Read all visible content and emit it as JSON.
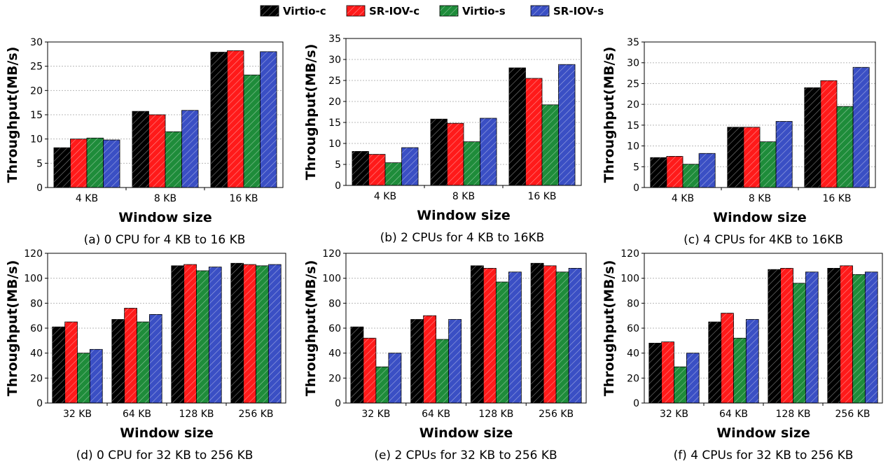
{
  "legend": [
    {
      "name": "Virtio-c",
      "color": "#000000"
    },
    {
      "name": "SR-IOV-c",
      "color": "#ff1a1a"
    },
    {
      "name": "Virtio-s",
      "color": "#1e8c3a"
    },
    {
      "name": "SR-IOV-s",
      "color": "#3a4fc4"
    }
  ],
  "chart_data": [
    {
      "type": "bar",
      "caption": "(a) 0 CPU for 4 KB to 16 KB",
      "xlabel": "Window size",
      "ylabel": "Throughput(MB/s)",
      "ylim": [
        0,
        30
      ],
      "yticks": [
        0,
        5,
        10,
        15,
        20,
        25,
        30
      ],
      "grid": true,
      "categories": [
        "4 KB",
        "8 KB",
        "16 KB"
      ],
      "series": [
        {
          "name": "Virtio-c",
          "values": [
            8.2,
            15.7,
            27.9
          ]
        },
        {
          "name": "SR-IOV-c",
          "values": [
            10.0,
            15.0,
            28.2
          ]
        },
        {
          "name": "Virtio-s",
          "values": [
            10.2,
            11.5,
            23.2
          ]
        },
        {
          "name": "SR-IOV-s",
          "values": [
            9.8,
            15.9,
            28.0
          ]
        }
      ]
    },
    {
      "type": "bar",
      "caption": "(b) 2 CPUs for 4 KB to 16KB",
      "xlabel": "Window size",
      "ylabel": "Throughput(MB/s)",
      "ylim": [
        0,
        35
      ],
      "yticks": [
        0,
        5,
        10,
        15,
        20,
        25,
        30,
        35
      ],
      "grid": true,
      "categories": [
        "4 KB",
        "8 KB",
        "16 KB"
      ],
      "series": [
        {
          "name": "Virtio-c",
          "values": [
            8.1,
            15.8,
            28.0
          ]
        },
        {
          "name": "SR-IOV-c",
          "values": [
            7.4,
            14.8,
            25.5
          ]
        },
        {
          "name": "Virtio-s",
          "values": [
            5.4,
            10.4,
            19.2
          ]
        },
        {
          "name": "SR-IOV-s",
          "values": [
            9.0,
            16.0,
            28.8
          ]
        }
      ]
    },
    {
      "type": "bar",
      "caption": "(c) 4 CPUs for 4KB to 16KB",
      "xlabel": "Window size",
      "ylabel": "Throughput(MB/s)",
      "ylim": [
        0,
        35
      ],
      "yticks": [
        0,
        5,
        10,
        15,
        20,
        25,
        30,
        35
      ],
      "grid": true,
      "categories": [
        "4 KB",
        "8 KB",
        "16 KB"
      ],
      "series": [
        {
          "name": "Virtio-c",
          "values": [
            7.2,
            14.5,
            24.0
          ]
        },
        {
          "name": "SR-IOV-c",
          "values": [
            7.5,
            14.5,
            25.7
          ]
        },
        {
          "name": "Virtio-s",
          "values": [
            5.6,
            11.0,
            19.5
          ]
        },
        {
          "name": "SR-IOV-s",
          "values": [
            8.2,
            15.9,
            28.9
          ]
        }
      ]
    },
    {
      "type": "bar",
      "caption": "(d) 0 CPU for 32 KB to 256 KB",
      "xlabel": "Window size",
      "ylabel": "Throughput(MB/s)",
      "ylim": [
        0,
        120
      ],
      "yticks": [
        0,
        20,
        40,
        60,
        80,
        100,
        120
      ],
      "grid": true,
      "categories": [
        "32 KB",
        "64 KB",
        "128 KB",
        "256 KB"
      ],
      "series": [
        {
          "name": "Virtio-c",
          "values": [
            61,
            67,
            110,
            112
          ]
        },
        {
          "name": "SR-IOV-c",
          "values": [
            65,
            76,
            111,
            111
          ]
        },
        {
          "name": "Virtio-s",
          "values": [
            40,
            65,
            106,
            110
          ]
        },
        {
          "name": "SR-IOV-s",
          "values": [
            43,
            71,
            109,
            111
          ]
        }
      ]
    },
    {
      "type": "bar",
      "caption": "(e) 2 CPUs for 32 KB to 256 KB",
      "xlabel": "Window size",
      "ylabel": "Throughput(MB/s)",
      "ylim": [
        0,
        120
      ],
      "yticks": [
        0,
        20,
        40,
        60,
        80,
        100,
        120
      ],
      "grid": true,
      "categories": [
        "32 KB",
        "64 KB",
        "128 KB",
        "256 KB"
      ],
      "series": [
        {
          "name": "Virtio-c",
          "values": [
            61,
            67,
            110,
            112
          ]
        },
        {
          "name": "SR-IOV-c",
          "values": [
            52,
            70,
            108,
            110
          ]
        },
        {
          "name": "Virtio-s",
          "values": [
            29,
            51,
            97,
            105
          ]
        },
        {
          "name": "SR-IOV-s",
          "values": [
            40,
            67,
            105,
            108
          ]
        }
      ]
    },
    {
      "type": "bar",
      "caption": "(f) 4 CPUs for 32 KB to 256 KB",
      "xlabel": "Window size",
      "ylabel": "Throughput(MB/s)",
      "ylim": [
        0,
        120
      ],
      "yticks": [
        0,
        20,
        40,
        60,
        80,
        100,
        120
      ],
      "grid": true,
      "categories": [
        "32 KB",
        "64 KB",
        "128 KB",
        "256 KB"
      ],
      "series": [
        {
          "name": "Virtio-c",
          "values": [
            48,
            65,
            107,
            108
          ]
        },
        {
          "name": "SR-IOV-c",
          "values": [
            49,
            72,
            108,
            110
          ]
        },
        {
          "name": "Virtio-s",
          "values": [
            29,
            52,
            96,
            103
          ]
        },
        {
          "name": "SR-IOV-s",
          "values": [
            40,
            67,
            105,
            105
          ]
        }
      ]
    }
  ]
}
